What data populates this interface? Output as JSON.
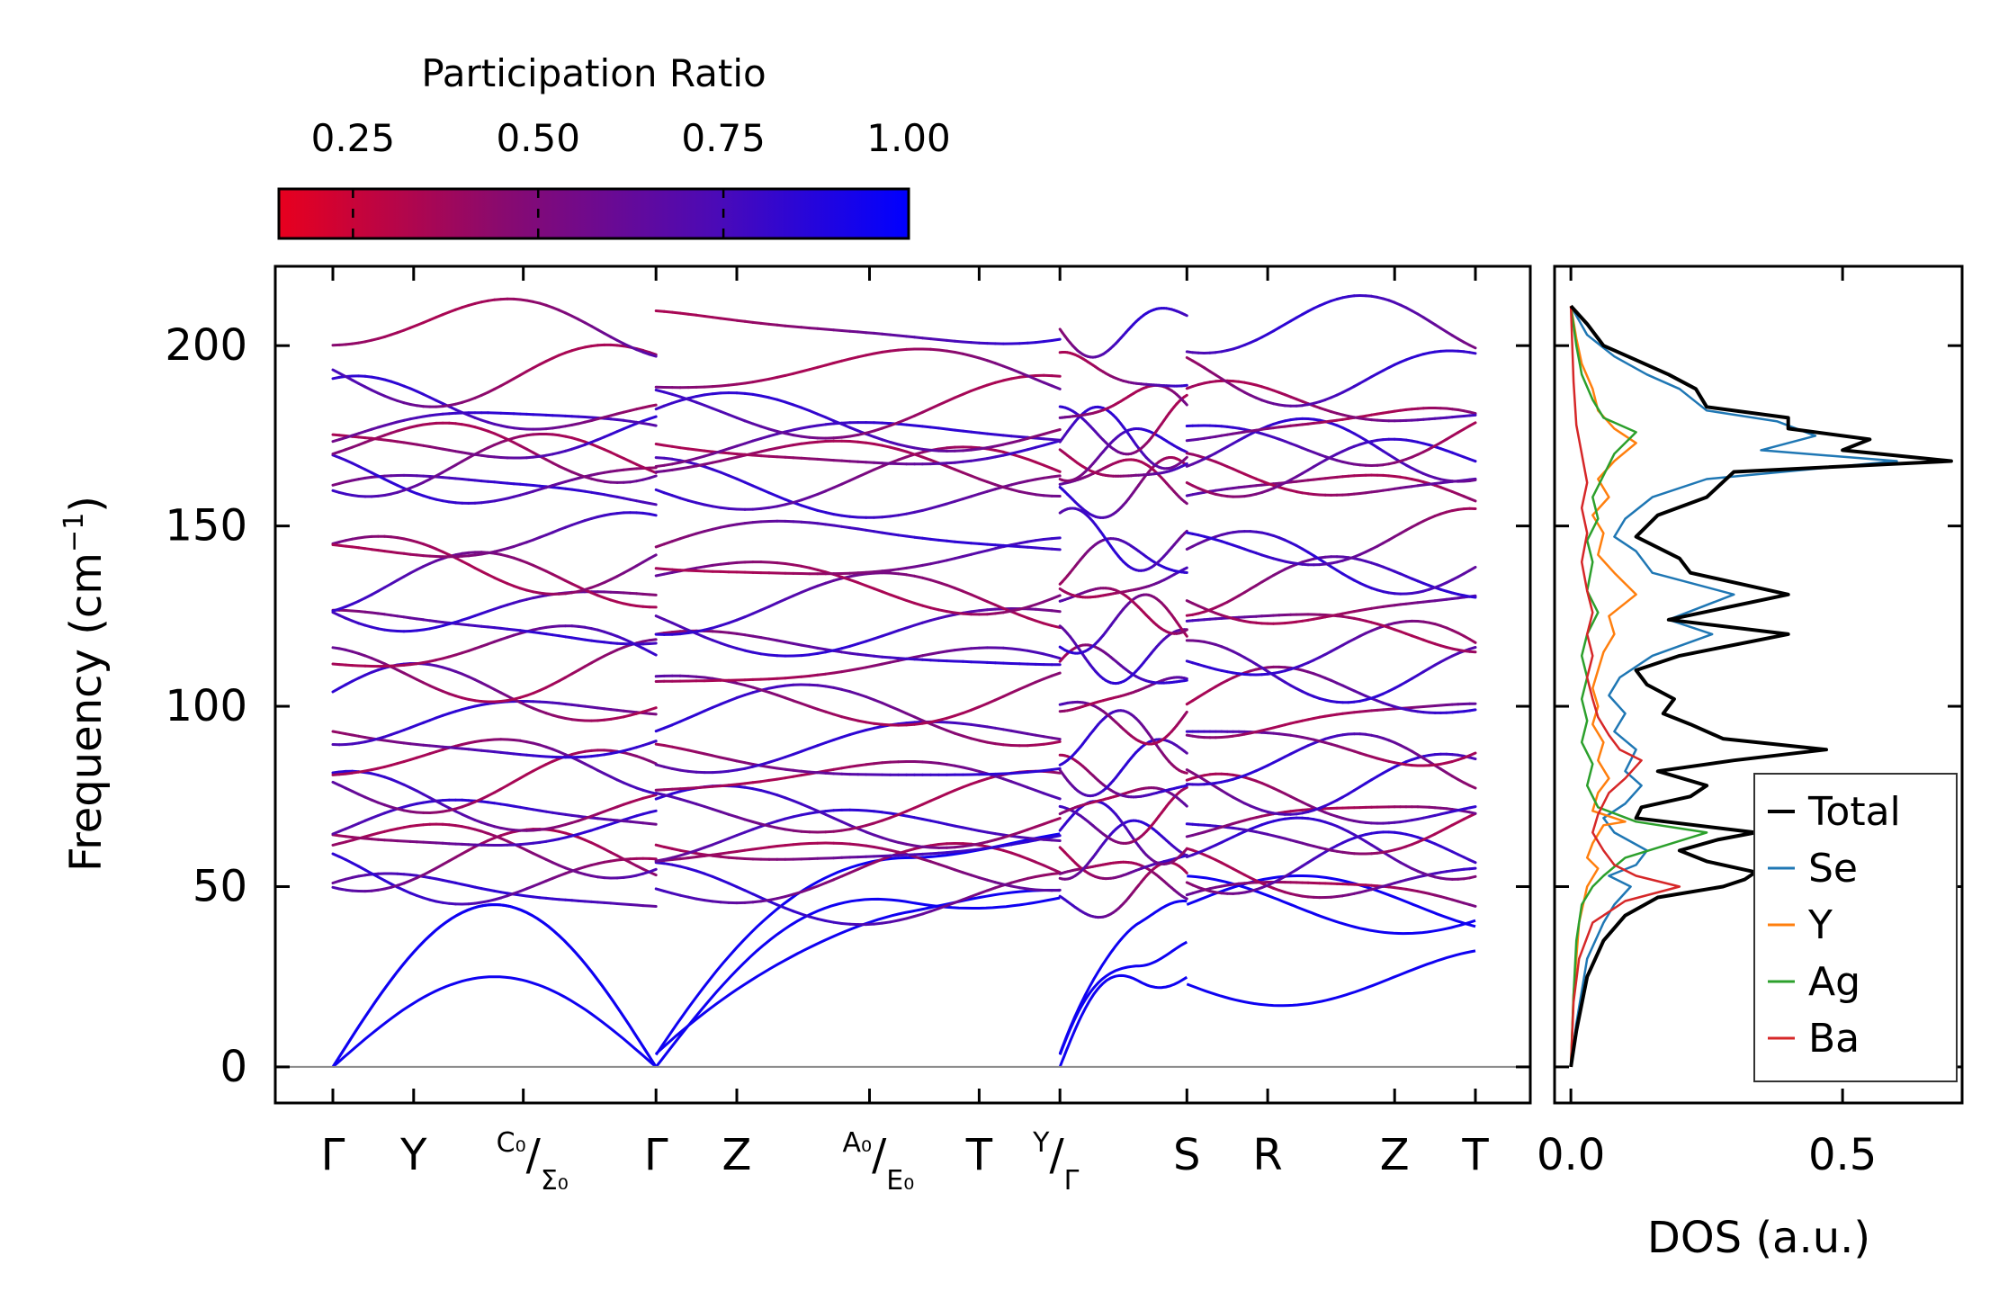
{
  "chart_data": [
    {
      "type": "line",
      "name": "phonon-band-structure",
      "ylabel": "Frequency (cm",
      "ylabel_sup": "−1",
      "ylabel_close": ")",
      "ylim": [
        -10,
        222
      ],
      "yticks": [
        0,
        50,
        100,
        150,
        200
      ],
      "high_symmetry_points": [
        {
          "label": "Γ",
          "x": 0.0
        },
        {
          "label": "Y",
          "x": 0.7
        },
        {
          "label": "C₀/Σ₀",
          "main": "/",
          "sup": "C₀",
          "sub": "Σ₀",
          "x": 1.65
        },
        {
          "label": "Γ",
          "x": 2.8
        },
        {
          "label": "Z",
          "x": 3.5
        },
        {
          "label": "A₀/E₀",
          "main": "/",
          "sup": "A₀",
          "sub": "E₀",
          "x": 4.65
        },
        {
          "label": "T",
          "x": 5.6
        },
        {
          "label": "Y/Γ",
          "main": "/",
          "sup": "Y",
          "sub": "Γ",
          "x": 6.3
        },
        {
          "label": "S",
          "x": 7.4
        },
        {
          "label": "R",
          "x": 8.1
        },
        {
          "label": "Z",
          "x": 9.2
        },
        {
          "label": "T",
          "x": 9.9
        }
      ],
      "segments": [
        [
          0.0,
          2.8
        ],
        [
          2.8,
          6.3
        ],
        [
          6.3,
          7.4
        ],
        [
          7.4,
          9.9
        ]
      ],
      "acoustic_endpoints_cm1": [
        [
          45,
          48,
          26
        ],
        [
          45,
          62,
          32
        ],
        [
          25,
          45,
          42
        ],
        [
          30,
          42,
          28
        ],
        [
          25,
          30,
          32
        ]
      ],
      "optical_branch_base_cm1": [
        48,
        53,
        57,
        61,
        65,
        69,
        73,
        79,
        84,
        90,
        97,
        103,
        110,
        115,
        122,
        128,
        134,
        140,
        146,
        160,
        163,
        167,
        171,
        174,
        178,
        183,
        192,
        205
      ],
      "colorbar": {
        "label": "Participation Ratio",
        "range": [
          0.15,
          1.0
        ],
        "ticks": [
          "0.25",
          "0.50",
          "0.75",
          "1.00"
        ],
        "tick_values": [
          0.25,
          0.5,
          0.75,
          1.0
        ],
        "colors": [
          "#e8001e",
          "#8a0a6e",
          "#4a0ab8",
          "#0000ff"
        ]
      }
    },
    {
      "type": "line",
      "name": "phonon-dos",
      "xlabel": "DOS (a.u.)",
      "xlim": [
        -0.03,
        0.72
      ],
      "xticks": [
        "0.0",
        "0.5"
      ],
      "xtick_values": [
        0.0,
        0.5
      ],
      "ylim": [
        -10,
        222
      ],
      "series": [
        {
          "name": "Total",
          "color": "#000000",
          "points": [
            [
              0,
              0
            ],
            [
              0.01,
              10
            ],
            [
              0.03,
              25
            ],
            [
              0.06,
              35
            ],
            [
              0.1,
              42
            ],
            [
              0.16,
              47
            ],
            [
              0.28,
              50
            ],
            [
              0.32,
              52
            ],
            [
              0.34,
              54
            ],
            [
              0.25,
              57
            ],
            [
              0.2,
              60
            ],
            [
              0.27,
              63
            ],
            [
              0.34,
              65
            ],
            [
              0.12,
              69
            ],
            [
              0.13,
              72
            ],
            [
              0.22,
              75
            ],
            [
              0.25,
              78
            ],
            [
              0.16,
              82
            ],
            [
              0.3,
              85
            ],
            [
              0.47,
              88
            ],
            [
              0.28,
              91
            ],
            [
              0.22,
              95
            ],
            [
              0.17,
              98
            ],
            [
              0.19,
              102
            ],
            [
              0.14,
              106
            ],
            [
              0.12,
              110
            ],
            [
              0.2,
              114
            ],
            [
              0.4,
              120
            ],
            [
              0.18,
              124
            ],
            [
              0.4,
              131
            ],
            [
              0.22,
              137
            ],
            [
              0.2,
              141
            ],
            [
              0.12,
              147
            ],
            [
              0.16,
              153
            ],
            [
              0.25,
              158
            ],
            [
              0.3,
              165
            ],
            [
              0.7,
              168
            ],
            [
              0.5,
              171
            ],
            [
              0.55,
              174
            ],
            [
              0.4,
              177
            ],
            [
              0.4,
              180
            ],
            [
              0.25,
              183
            ],
            [
              0.23,
              188
            ],
            [
              0.18,
              192
            ],
            [
              0.12,
              196
            ],
            [
              0.06,
              200
            ],
            [
              0.03,
              206
            ],
            [
              0,
              211
            ]
          ]
        },
        {
          "name": "Se",
          "color": "#1f77b4",
          "points": [
            [
              0,
              0
            ],
            [
              0.01,
              12
            ],
            [
              0.03,
              30
            ],
            [
              0.06,
              40
            ],
            [
              0.08,
              45
            ],
            [
              0.11,
              50
            ],
            [
              0.07,
              53
            ],
            [
              0.12,
              56
            ],
            [
              0.14,
              60
            ],
            [
              0.08,
              65
            ],
            [
              0.06,
              69
            ],
            [
              0.1,
              73
            ],
            [
              0.13,
              78
            ],
            [
              0.1,
              82
            ],
            [
              0.12,
              88
            ],
            [
              0.08,
              93
            ],
            [
              0.1,
              98
            ],
            [
              0.07,
              103
            ],
            [
              0.09,
              108
            ],
            [
              0.15,
              114
            ],
            [
              0.26,
              120
            ],
            [
              0.18,
              124
            ],
            [
              0.3,
              131
            ],
            [
              0.15,
              137
            ],
            [
              0.12,
              143
            ],
            [
              0.08,
              147
            ],
            [
              0.1,
              152
            ],
            [
              0.15,
              158
            ],
            [
              0.25,
              163
            ],
            [
              0.6,
              168
            ],
            [
              0.35,
              171
            ],
            [
              0.45,
              175
            ],
            [
              0.38,
              179
            ],
            [
              0.25,
              182
            ],
            [
              0.2,
              188
            ],
            [
              0.14,
              192
            ],
            [
              0.08,
              197
            ],
            [
              0.03,
              203
            ],
            [
              0,
              211
            ]
          ]
        },
        {
          "name": "Y",
          "color": "#ff7f0e",
          "points": [
            [
              0,
              0
            ],
            [
              0.005,
              20
            ],
            [
              0.015,
              40
            ],
            [
              0.03,
              50
            ],
            [
              0.05,
              55
            ],
            [
              0.03,
              58
            ],
            [
              0.04,
              62
            ],
            [
              0.06,
              67
            ],
            [
              0.1,
              68
            ],
            [
              0.04,
              71
            ],
            [
              0.05,
              76
            ],
            [
              0.07,
              80
            ],
            [
              0.05,
              85
            ],
            [
              0.06,
              90
            ],
            [
              0.04,
              95
            ],
            [
              0.05,
              100
            ],
            [
              0.04,
              105
            ],
            [
              0.05,
              110
            ],
            [
              0.06,
              115
            ],
            [
              0.08,
              120
            ],
            [
              0.07,
              125
            ],
            [
              0.12,
              131
            ],
            [
              0.08,
              137
            ],
            [
              0.05,
              142
            ],
            [
              0.06,
              148
            ],
            [
              0.04,
              153
            ],
            [
              0.07,
              158
            ],
            [
              0.05,
              163
            ],
            [
              0.08,
              168
            ],
            [
              0.12,
              173
            ],
            [
              0.08,
              177
            ],
            [
              0.05,
              182
            ],
            [
              0.04,
              188
            ],
            [
              0.02,
              195
            ],
            [
              0.01,
              202
            ],
            [
              0,
              211
            ]
          ]
        },
        {
          "name": "Ag",
          "color": "#2ca02c",
          "points": [
            [
              0,
              0
            ],
            [
              0.005,
              20
            ],
            [
              0.01,
              35
            ],
            [
              0.02,
              45
            ],
            [
              0.04,
              50
            ],
            [
              0.06,
              53
            ],
            [
              0.1,
              58
            ],
            [
              0.25,
              65
            ],
            [
              0.12,
              68
            ],
            [
              0.05,
              72
            ],
            [
              0.03,
              78
            ],
            [
              0.04,
              84
            ],
            [
              0.02,
              90
            ],
            [
              0.03,
              96
            ],
            [
              0.02,
              102
            ],
            [
              0.03,
              108
            ],
            [
              0.02,
              114
            ],
            [
              0.03,
              120
            ],
            [
              0.05,
              126
            ],
            [
              0.03,
              132
            ],
            [
              0.04,
              140
            ],
            [
              0.03,
              146
            ],
            [
              0.05,
              152
            ],
            [
              0.04,
              158
            ],
            [
              0.06,
              164
            ],
            [
              0.08,
              170
            ],
            [
              0.12,
              176
            ],
            [
              0.06,
              180
            ],
            [
              0.04,
              185
            ],
            [
              0.02,
              192
            ],
            [
              0.01,
              200
            ],
            [
              0,
              211
            ]
          ]
        },
        {
          "name": "Ba",
          "color": "#d62728",
          "points": [
            [
              0,
              0
            ],
            [
              0.005,
              18
            ],
            [
              0.015,
              30
            ],
            [
              0.04,
              40
            ],
            [
              0.1,
              46
            ],
            [
              0.2,
              50
            ],
            [
              0.12,
              53
            ],
            [
              0.08,
              56
            ],
            [
              0.06,
              60
            ],
            [
              0.04,
              65
            ],
            [
              0.05,
              70
            ],
            [
              0.07,
              76
            ],
            [
              0.1,
              80
            ],
            [
              0.13,
              85
            ],
            [
              0.09,
              88
            ],
            [
              0.07,
              92
            ],
            [
              0.05,
              97
            ],
            [
              0.04,
              102
            ],
            [
              0.03,
              108
            ],
            [
              0.04,
              114
            ],
            [
              0.03,
              120
            ],
            [
              0.04,
              126
            ],
            [
              0.03,
              132
            ],
            [
              0.02,
              140
            ],
            [
              0.03,
              148
            ],
            [
              0.02,
              155
            ],
            [
              0.03,
              162
            ],
            [
              0.02,
              170
            ],
            [
              0.01,
              178
            ],
            [
              0.005,
              190
            ],
            [
              0,
              211
            ]
          ]
        }
      ],
      "legend": {
        "placement": "lower-right",
        "entries": [
          "Total",
          "Se",
          "Y",
          "Ag",
          "Ba"
        ]
      }
    }
  ]
}
